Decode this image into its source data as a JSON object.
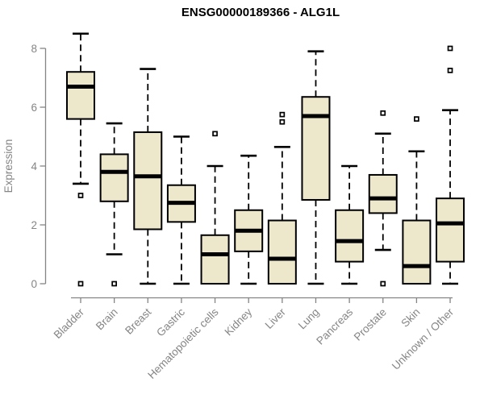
{
  "page": {
    "background": "#ffffff"
  },
  "chart_data": {
    "type": "boxplot",
    "title": "ENSG00000189366 - ALG1L",
    "ylabel": "Expression",
    "xlabel": "",
    "yticks": [
      0,
      2,
      4,
      6,
      8
    ],
    "ylim": [
      0,
      8.6
    ],
    "grid": false,
    "legend": false,
    "colors": {
      "box_fill": "#EDE7CB",
      "box_border": "#000000",
      "median": "#000000",
      "whisker": "#000000",
      "outlier_fill": "#FFFFFF",
      "axis": "#858585",
      "tick_label": "#858585",
      "title": "#000000"
    },
    "categories": [
      "Bladder",
      "Brain",
      "Breast",
      "Gastric",
      "Hematopoietic cells",
      "Kidney",
      "Liver",
      "Lung",
      "Pancreas",
      "Prostate",
      "Skin",
      "Unknown / Other"
    ],
    "series": [
      {
        "category": "Bladder",
        "whisker_low": 3.4,
        "q1": 5.6,
        "median": 6.7,
        "q3": 7.2,
        "whisker_high": 8.5,
        "outliers": [
          3.0,
          0
        ]
      },
      {
        "category": "Brain",
        "whisker_low": 1.0,
        "q1": 2.8,
        "median": 3.8,
        "q3": 4.4,
        "whisker_high": 5.45,
        "outliers": [
          0
        ]
      },
      {
        "category": "Breast",
        "whisker_low": 0,
        "q1": 1.85,
        "median": 3.65,
        "q3": 5.15,
        "whisker_high": 7.3,
        "outliers": []
      },
      {
        "category": "Gastric",
        "whisker_low": 0,
        "q1": 2.1,
        "median": 2.75,
        "q3": 3.35,
        "whisker_high": 5.0,
        "outliers": []
      },
      {
        "category": "Hematopoietic cells",
        "whisker_low": 0,
        "q1": 0,
        "median": 1.0,
        "q3": 1.65,
        "whisker_high": 4.0,
        "outliers": [
          5.1
        ]
      },
      {
        "category": "Kidney",
        "whisker_low": 0,
        "q1": 1.1,
        "median": 1.8,
        "q3": 2.5,
        "whisker_high": 4.35,
        "outliers": []
      },
      {
        "category": "Liver",
        "whisker_low": 0,
        "q1": 0,
        "median": 0.85,
        "q3": 2.15,
        "whisker_high": 4.65,
        "outliers": [
          5.5,
          5.75
        ]
      },
      {
        "category": "Lung",
        "whisker_low": 0,
        "q1": 2.85,
        "median": 5.7,
        "q3": 6.35,
        "whisker_high": 7.9,
        "outliers": []
      },
      {
        "category": "Pancreas",
        "whisker_low": 0,
        "q1": 0.75,
        "median": 1.45,
        "q3": 2.5,
        "whisker_high": 4.0,
        "outliers": []
      },
      {
        "category": "Prostate",
        "whisker_low": 1.15,
        "q1": 2.4,
        "median": 2.9,
        "q3": 3.7,
        "whisker_high": 5.1,
        "outliers": [
          5.8,
          0
        ]
      },
      {
        "category": "Skin",
        "whisker_low": 0,
        "q1": 0,
        "median": 0.6,
        "q3": 2.15,
        "whisker_high": 4.5,
        "outliers": [
          5.6
        ]
      },
      {
        "category": "Unknown / Other",
        "whisker_low": 0,
        "q1": 0.75,
        "median": 2.05,
        "q3": 2.9,
        "whisker_high": 5.9,
        "outliers": [
          7.25,
          8.0
        ]
      }
    ]
  }
}
